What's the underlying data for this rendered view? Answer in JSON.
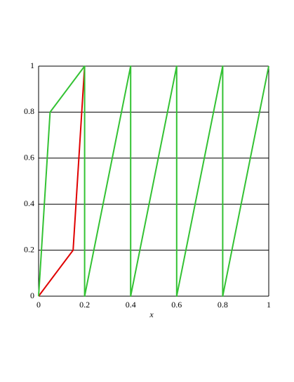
{
  "chart_data": {
    "type": "line",
    "x_label": "x",
    "series": [
      {
        "color": "#e00000",
        "x": [
          0,
          0.15,
          0.2
        ],
        "values": [
          0,
          0.2,
          1
        ]
      },
      {
        "color": "#33c233",
        "x": [
          0,
          0.05,
          0.2,
          0.2,
          0.4,
          0.4,
          0.6,
          0.6,
          0.8,
          0.8,
          1
        ],
        "values": [
          0,
          0.8,
          1,
          0,
          1,
          0,
          1,
          0,
          1,
          0,
          1
        ]
      }
    ],
    "xlim": [
      0,
      1
    ],
    "ylim": [
      0,
      1
    ],
    "xticks": [
      0,
      0.2,
      0.4,
      0.6,
      0.8,
      1
    ],
    "yticks": [
      0,
      0.2,
      0.4,
      0.6,
      0.8,
      1
    ],
    "grid": true
  }
}
